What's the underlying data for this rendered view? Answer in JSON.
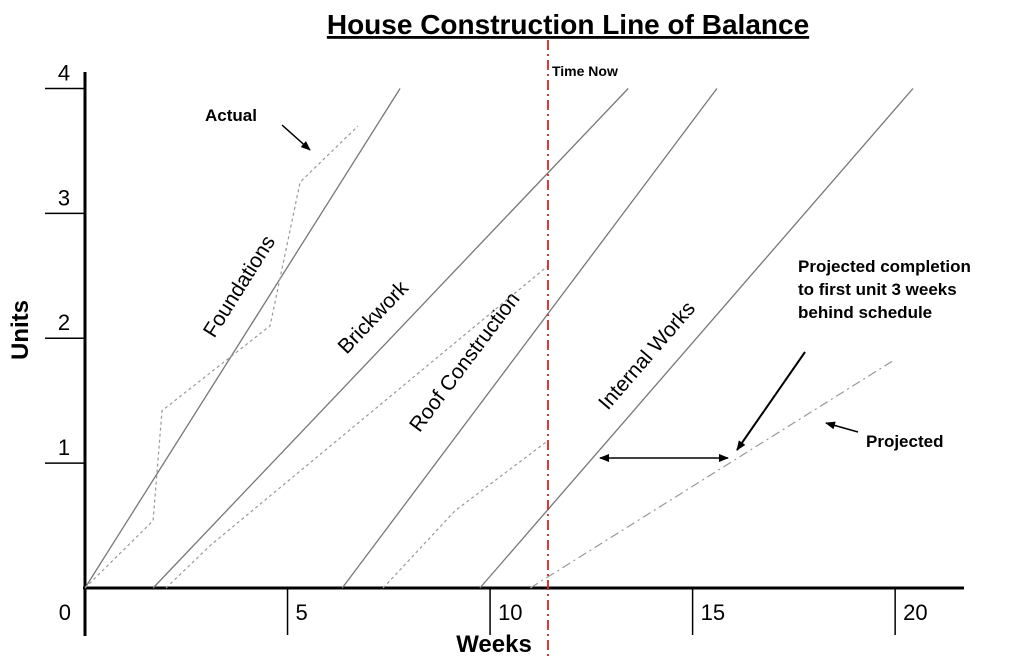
{
  "chart_data": {
    "type": "line",
    "title": "House Construction Line of Balance",
    "x_label": "Weeks",
    "y_label": "Units",
    "xlim": [
      0,
      21.7
    ],
    "ylim": [
      0,
      4.1
    ],
    "xticks": [
      0,
      5,
      10,
      15,
      20
    ],
    "yticks": [
      1,
      2,
      3,
      4
    ],
    "series": [
      {
        "name": "Foundations",
        "style": "solid",
        "color": "#777777",
        "x": [
          0,
          7.78
        ],
        "values": [
          0,
          4
        ]
      },
      {
        "name": "Brickwork",
        "style": "solid",
        "color": "#777777",
        "x": [
          1.68,
          13.41
        ],
        "values": [
          0,
          4
        ]
      },
      {
        "name": "Roof Construction",
        "style": "solid",
        "color": "#777777",
        "x": [
          6.35,
          15.6
        ],
        "values": [
          0,
          4
        ]
      },
      {
        "name": "Internal Works",
        "style": "solid",
        "color": "#777777",
        "x": [
          9.75,
          20.44
        ],
        "values": [
          0,
          4
        ]
      },
      {
        "name": "Actual",
        "style": "dashed",
        "color": "#999999",
        "x": [
          0,
          1.68,
          1.9,
          4.57,
          5.31,
          6.74
        ],
        "values": [
          0,
          0.54,
          1.42,
          2.1,
          3.25,
          3.7
        ]
      },
      {
        "style": "dashed",
        "color": "#999999",
        "x": [
          2.0,
          3.09,
          11.43
        ],
        "values": [
          0,
          0.34,
          2.58
        ]
      },
      {
        "style": "dashed",
        "color": "#999999",
        "x": [
          7.36,
          9.14,
          11.43
        ],
        "values": [
          0,
          0.62,
          1.18
        ]
      },
      {
        "name": "Projected",
        "style": "dashdot",
        "color": "#999999",
        "x": [
          10.99,
          19.95
        ],
        "values": [
          0,
          1.82
        ]
      }
    ],
    "time_now": {
      "x": 11.43,
      "label": "Time Now",
      "color": "#dd2222"
    },
    "annotation": [
      "Projected completion",
      "to first unit 3 weeks",
      "behind schedule"
    ]
  }
}
